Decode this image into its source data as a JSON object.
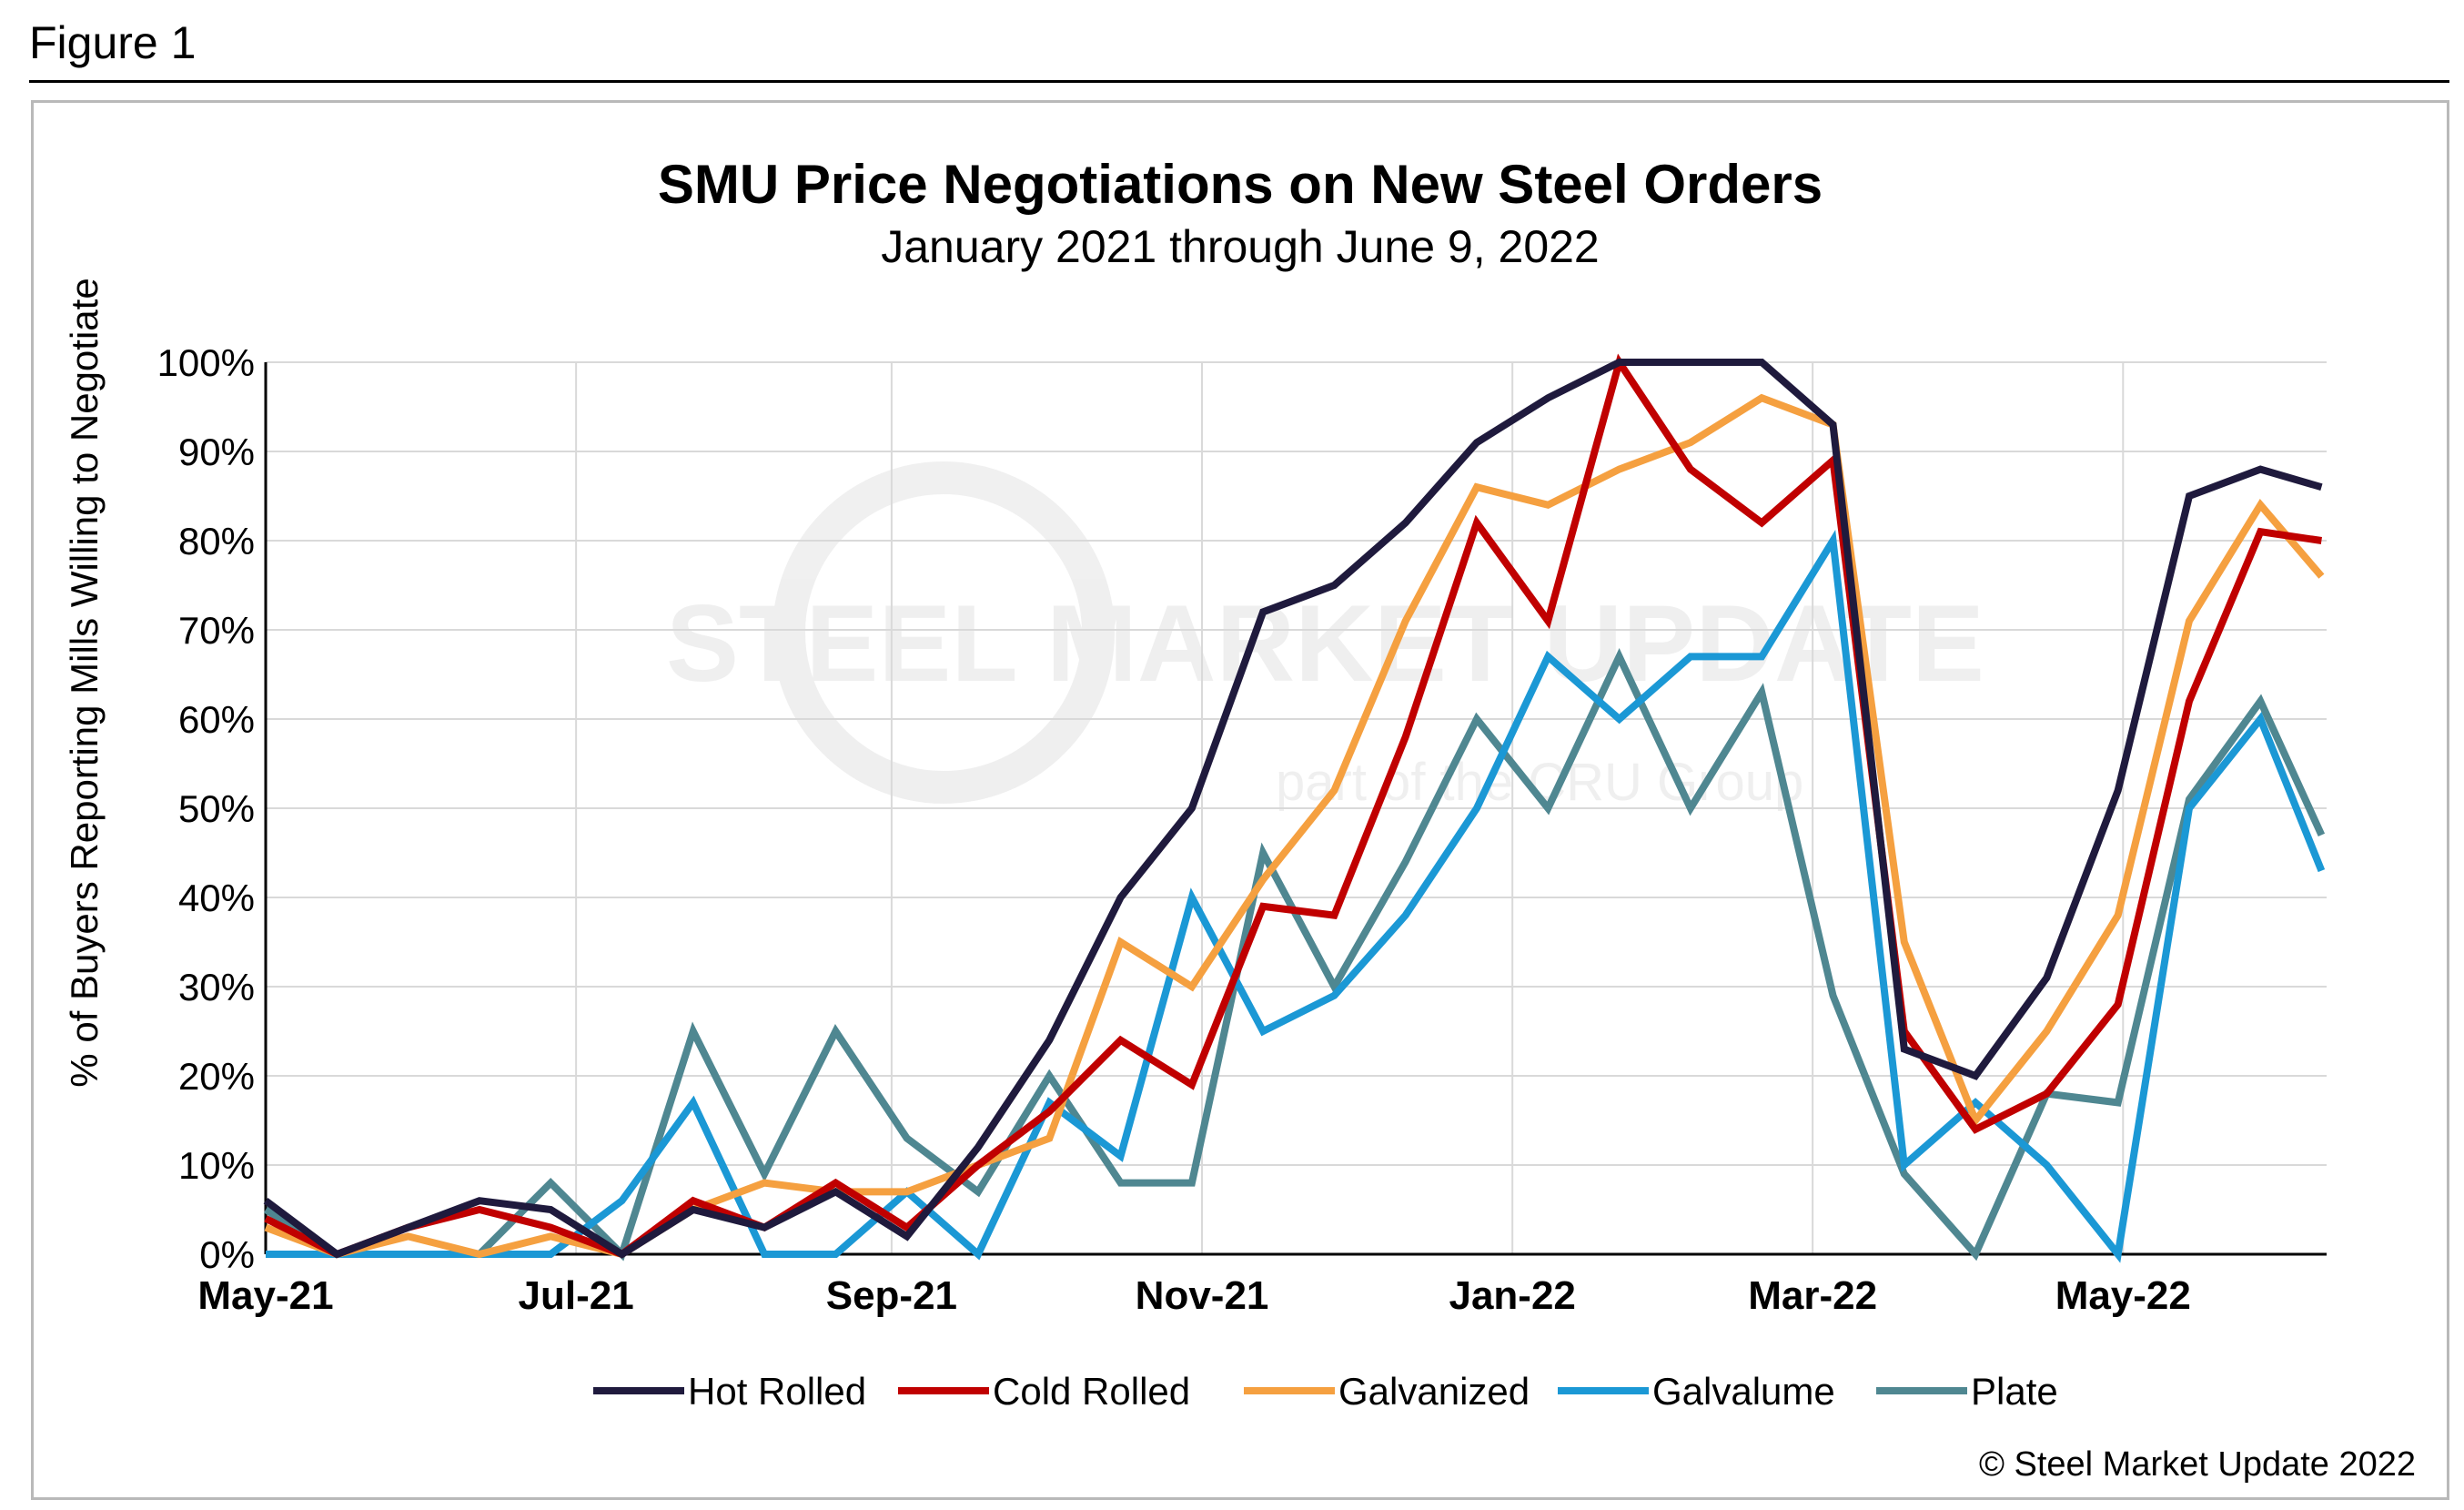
{
  "figure_label": "Figure 1",
  "copyright": "© Steel Market Update 2022",
  "watermark": {
    "line1": "STEEL MARKET UPDATE",
    "line2": "part of the CRU Group"
  },
  "chart_data": {
    "type": "line",
    "title": "SMU Price Negotiations on New Steel Orders",
    "subtitle": "January 2021 through June 9, 2022",
    "xlabel": "",
    "ylabel": "% of Buyers Reporting Mills Willing to Negotiate",
    "ylim": [
      0,
      100
    ],
    "yticks": [
      0,
      10,
      20,
      30,
      40,
      50,
      60,
      70,
      80,
      90,
      100
    ],
    "ytick_labels": [
      "0%",
      "10%",
      "20%",
      "30%",
      "40%",
      "50%",
      "60%",
      "70%",
      "80%",
      "90%",
      "100%"
    ],
    "x_tick_labels": [
      "May-21",
      "Jul-21",
      "Sep-21",
      "Nov-21",
      "Jan-22",
      "Mar-22",
      "May-22"
    ],
    "x_tick_dates": [
      "2021-05-01",
      "2021-07-01",
      "2021-09-01",
      "2021-11-01",
      "2022-01-01",
      "2022-03-01",
      "2022-05-01"
    ],
    "x_range": [
      "2021-05-01",
      "2022-06-10"
    ],
    "grid": true,
    "legend_position": "bottom",
    "x": [
      "2021-05-01",
      "2021-05-15",
      "2021-05-29",
      "2021-06-12",
      "2021-06-26",
      "2021-07-10",
      "2021-07-24",
      "2021-08-07",
      "2021-08-21",
      "2021-09-04",
      "2021-09-18",
      "2021-10-02",
      "2021-10-16",
      "2021-10-30",
      "2021-11-13",
      "2021-11-27",
      "2021-12-11",
      "2021-12-25",
      "2022-01-08",
      "2022-01-22",
      "2022-02-05",
      "2022-02-19",
      "2022-03-05",
      "2022-03-19",
      "2022-04-02",
      "2022-04-16",
      "2022-04-30",
      "2022-05-14",
      "2022-05-28",
      "2022-06-09"
    ],
    "series": [
      {
        "name": "Hot Rolled",
        "color": "#1f1a3d",
        "values": [
          6,
          0,
          3,
          6,
          5,
          0,
          5,
          3,
          7,
          2,
          12,
          24,
          40,
          50,
          72,
          75,
          82,
          91,
          96,
          100,
          100,
          100,
          93,
          23,
          20,
          31,
          52,
          85,
          88,
          86
        ]
      },
      {
        "name": "Cold Rolled",
        "color": "#c00000",
        "values": [
          4,
          0,
          3,
          5,
          3,
          0,
          6,
          3,
          8,
          3,
          10,
          16,
          24,
          19,
          39,
          38,
          58,
          82,
          71,
          100,
          88,
          82,
          89,
          25,
          14,
          18,
          28,
          62,
          81,
          80
        ]
      },
      {
        "name": "Galvanized",
        "color": "#f5a040",
        "values": [
          3,
          0,
          2,
          0,
          2,
          0,
          5,
          8,
          7,
          7,
          10,
          13,
          35,
          30,
          42,
          52,
          71,
          86,
          84,
          88,
          91,
          96,
          93,
          35,
          15,
          25,
          38,
          71,
          84,
          76
        ]
      },
      {
        "name": "Galvalume",
        "color": "#1b98d5",
        "values": [
          0,
          0,
          0,
          0,
          0,
          6,
          17,
          0,
          0,
          7,
          0,
          17,
          11,
          40,
          25,
          29,
          38,
          50,
          67,
          60,
          67,
          67,
          80,
          10,
          17,
          10,
          0,
          50,
          60,
          43
        ]
      },
      {
        "name": "Plate",
        "color": "#4f8791",
        "values": [
          5,
          0,
          0,
          0,
          8,
          0,
          25,
          9,
          25,
          13,
          7,
          20,
          8,
          8,
          45,
          30,
          44,
          60,
          50,
          67,
          50,
          63,
          29,
          9,
          0,
          18,
          17,
          51,
          62,
          47
        ]
      }
    ]
  }
}
